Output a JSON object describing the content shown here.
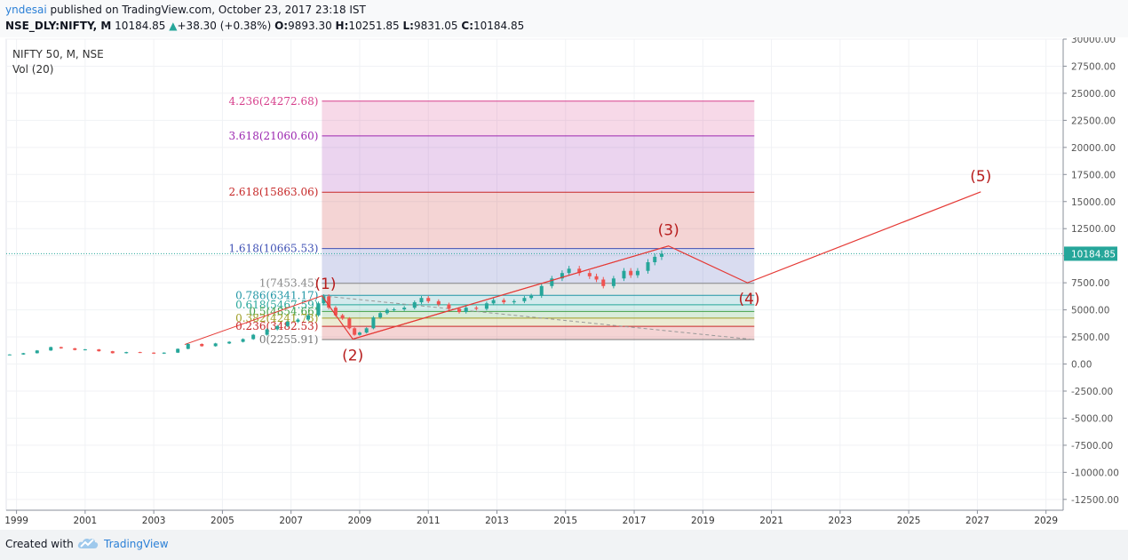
{
  "header": {
    "author": "yndesai",
    "published_text": "published on TradingView.com, October 23, 2017 23:18 IST",
    "symbol": "NSE_DLY:NIFTY, M",
    "last": "10184.85",
    "change": "+38.30 (+0.38%)",
    "o_label": "O:",
    "o_value": "9893.30",
    "h_label": "H:",
    "h_value": "10251.85",
    "l_label": "L:",
    "l_value": "9831.05",
    "c_label": "C:",
    "c_value": "10184.85"
  },
  "legend": {
    "main": "NIFTY 50, M, NSE",
    "volume": "Vol (20)"
  },
  "footer": {
    "created_with": "Created with",
    "brand": "TradingView"
  },
  "colors": {
    "candle_up": "#26a69a",
    "candle_down": "#ef5350",
    "wave_line": "#e53935",
    "wave_label": "#b71c1c",
    "price_line": "#26a69a",
    "brand": "#2a7fd6"
  },
  "chart_data": {
    "type": "line",
    "x_axis": {
      "ticks": [
        "1999",
        "2001",
        "2003",
        "2005",
        "2007",
        "2009",
        "2011",
        "2013",
        "2015",
        "2017",
        "2019",
        "2021",
        "2023",
        "2025",
        "2027",
        "2029"
      ],
      "range": [
        1998.7,
        2029.5
      ]
    },
    "y_axis": {
      "ticks": [
        "30000.00",
        "27500.00",
        "25000.00",
        "22500.00",
        "20000.00",
        "17500.00",
        "15000.00",
        "12500.00",
        "10000.00",
        "7500.00",
        "5000.00",
        "2500.00",
        "0.00",
        "-2500.00",
        "-5000.00",
        "-7500.00",
        "-10000.00",
        "-12500.00"
      ],
      "range": [
        -13500,
        30000
      ],
      "position": "right"
    },
    "last_price": {
      "value": 10184.85,
      "label": "10184.85"
    },
    "series": [
      {
        "type": "candlestick",
        "points": [
          [
            1998.8,
            880
          ],
          [
            1999.2,
            1000
          ],
          [
            1999.6,
            1250
          ],
          [
            2000.0,
            1560
          ],
          [
            2000.3,
            1450
          ],
          [
            2000.7,
            1300
          ],
          [
            2001.0,
            1350
          ],
          [
            2001.4,
            1180
          ],
          [
            2001.8,
            1000
          ],
          [
            2002.2,
            1100
          ],
          [
            2002.6,
            1050
          ],
          [
            2003.0,
            960
          ],
          [
            2003.3,
            1050
          ],
          [
            2003.7,
            1400
          ],
          [
            2004.0,
            1850
          ],
          [
            2004.4,
            1650
          ],
          [
            2004.8,
            1900
          ],
          [
            2005.2,
            2050
          ],
          [
            2005.6,
            2300
          ],
          [
            2005.9,
            2700
          ],
          [
            2006.3,
            3200
          ],
          [
            2006.6,
            3500
          ],
          [
            2006.9,
            3900
          ],
          [
            2007.2,
            4100
          ],
          [
            2007.5,
            4500
          ],
          [
            2007.8,
            5600
          ],
          [
            2007.95,
            6250
          ],
          [
            2008.1,
            5200
          ],
          [
            2008.3,
            4500
          ],
          [
            2008.5,
            4200
          ],
          [
            2008.7,
            3300
          ],
          [
            2008.85,
            2700
          ],
          [
            2009.0,
            2900
          ],
          [
            2009.2,
            3300
          ],
          [
            2009.4,
            4300
          ],
          [
            2009.6,
            4700
          ],
          [
            2009.8,
            5000
          ],
          [
            2010.0,
            5050
          ],
          [
            2010.3,
            5200
          ],
          [
            2010.6,
            5700
          ],
          [
            2010.8,
            6100
          ],
          [
            2011.0,
            5800
          ],
          [
            2011.3,
            5500
          ],
          [
            2011.6,
            5100
          ],
          [
            2011.9,
            4800
          ],
          [
            2012.1,
            5200
          ],
          [
            2012.4,
            5100
          ],
          [
            2012.7,
            5600
          ],
          [
            2012.9,
            5900
          ],
          [
            2013.2,
            5700
          ],
          [
            2013.5,
            5800
          ],
          [
            2013.8,
            6100
          ],
          [
            2014.0,
            6300
          ],
          [
            2014.3,
            7200
          ],
          [
            2014.6,
            7900
          ],
          [
            2014.9,
            8400
          ],
          [
            2015.1,
            8800
          ],
          [
            2015.4,
            8400
          ],
          [
            2015.7,
            8100
          ],
          [
            2015.9,
            7800
          ],
          [
            2016.1,
            7200
          ],
          [
            2016.4,
            7900
          ],
          [
            2016.7,
            8600
          ],
          [
            2016.9,
            8200
          ],
          [
            2017.1,
            8600
          ],
          [
            2017.4,
            9400
          ],
          [
            2017.6,
            9900
          ],
          [
            2017.8,
            10184.85
          ]
        ]
      }
    ],
    "fibonacci": [
      {
        "label": "4.236(24272.68)",
        "value": 24272.68,
        "color": "#d63f8c"
      },
      {
        "label": "3.618(21060.60)",
        "value": 21060.6,
        "color": "#9c27b0"
      },
      {
        "label": "2.618(15863.06)",
        "value": 15863.06,
        "color": "#c62828"
      },
      {
        "label": "1.618(10665.53)",
        "value": 10665.53,
        "color": "#3f51b5"
      },
      {
        "label": "1(7453.45)",
        "value": 7453.45,
        "color": "#888888"
      },
      {
        "label": "0.786(6341.17)",
        "value": 6341.17,
        "color": "#2196a5"
      },
      {
        "label": "0.618(5467.59)",
        "value": 5467.59,
        "color": "#26a69a"
      },
      {
        "label": "0.5(4854.66)",
        "value": 4854.66,
        "color": "#43a047"
      },
      {
        "label": "0.382(4241.73)",
        "value": 4241.73,
        "color": "#9e9d24"
      },
      {
        "label": "0.236(3482.53)",
        "value": 3482.53,
        "color": "#c62828"
      },
      {
        "label": "0(2255.91)",
        "value": 2255.91,
        "color": "#777777"
      }
    ],
    "fib_range_x": [
      2007.9,
      2020.5
    ],
    "trendlines": [
      {
        "kind": "solid",
        "points": [
          [
            2003.9,
            1800
          ],
          [
            2007.9,
            6300
          ]
        ]
      },
      {
        "kind": "solid",
        "points": [
          [
            2008.8,
            2300
          ],
          [
            2018.0,
            10900
          ]
        ]
      },
      {
        "kind": "dashed",
        "points": [
          [
            2007.9,
            6300
          ],
          [
            2020.5,
            2250
          ]
        ]
      }
    ],
    "elliott_wave": {
      "points": [
        {
          "label": "(1)",
          "x": 2007.9,
          "y": 6300
        },
        {
          "label": "(2)",
          "x": 2008.8,
          "y": 2300
        },
        {
          "label": "(3)",
          "x": 2018.0,
          "y": 10900
        },
        {
          "label": "(4)",
          "x": 2020.3,
          "y": 7500
        },
        {
          "label": "(5)",
          "x": 2027.1,
          "y": 15900
        }
      ]
    }
  }
}
